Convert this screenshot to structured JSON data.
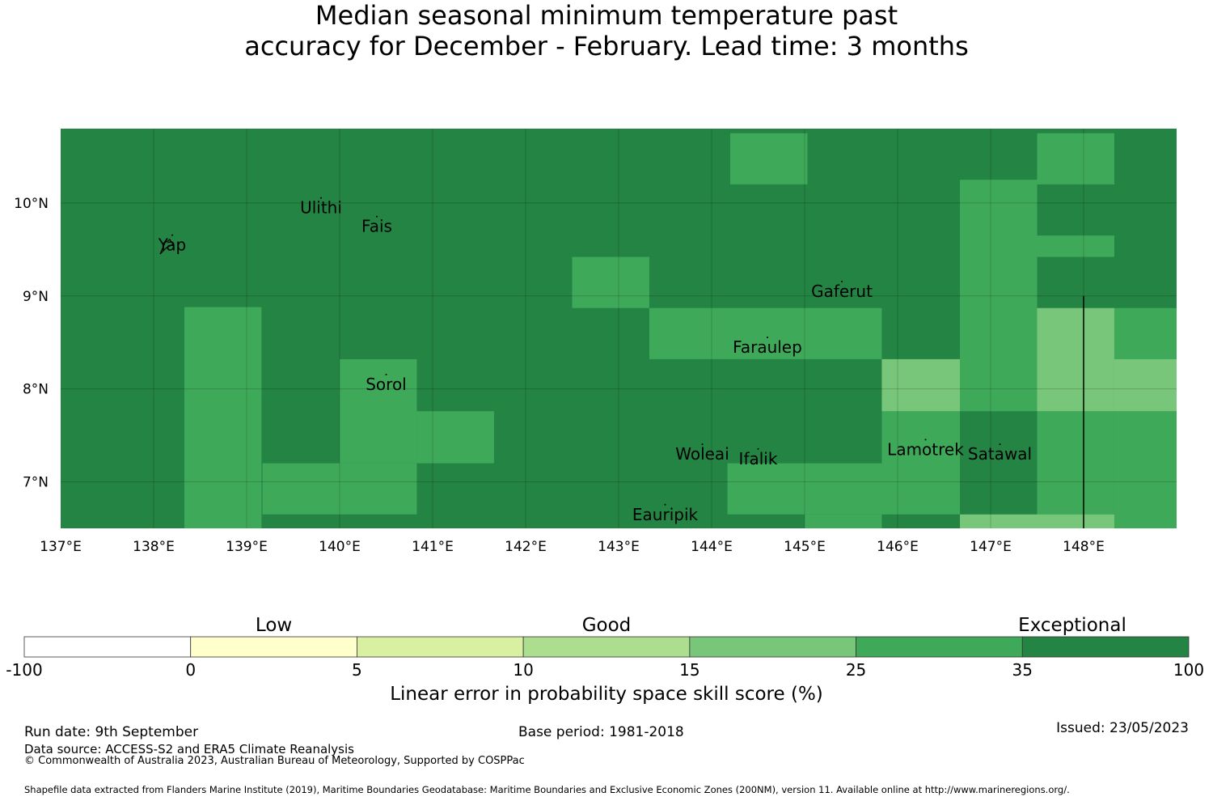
{
  "title": {
    "line1": "Median seasonal minimum temperature past",
    "line2": "accuracy for December - February. Lead time: 3 months"
  },
  "map": {
    "lon_range": [
      137,
      149
    ],
    "lat_range": [
      6.5,
      10.8
    ],
    "lon_ticks": [
      "137°E",
      "138°E",
      "139°E",
      "140°E",
      "141°E",
      "142°E",
      "143°E",
      "144°E",
      "145°E",
      "146°E",
      "147°E",
      "148°E"
    ],
    "lat_ticks": [
      "10°N",
      "9°N",
      "8°N",
      "7°N"
    ],
    "color_scale": {
      "c25": "#3fa95a",
      "c35": "#238443",
      "c15": "#78c679"
    },
    "places": [
      {
        "name": "Ulithi",
        "lon": 139.8,
        "lat": 9.95
      },
      {
        "name": "Fais",
        "lon": 140.4,
        "lat": 9.75
      },
      {
        "name": "Yap",
        "lon": 138.2,
        "lat": 9.55
      },
      {
        "name": "Gaferut",
        "lon": 145.4,
        "lat": 9.05
      },
      {
        "name": "Faraulep",
        "lon": 144.6,
        "lat": 8.45
      },
      {
        "name": "Sorol",
        "lon": 140.5,
        "lat": 8.05
      },
      {
        "name": "Woleai",
        "lon": 143.9,
        "lat": 7.3
      },
      {
        "name": "Ifalik",
        "lon": 144.5,
        "lat": 7.25
      },
      {
        "name": "Lamotrek",
        "lon": 146.3,
        "lat": 7.35
      },
      {
        "name": "Satawal",
        "lon": 147.1,
        "lat": 7.3
      },
      {
        "name": "Eauripik",
        "lon": 143.5,
        "lat": 6.65
      }
    ],
    "cells": [
      {
        "lon": 144.2,
        "lat": 10.2,
        "w": 0.83,
        "h": 0.55,
        "c": "c25"
      },
      {
        "lon": 147.5,
        "lat": 10.2,
        "w": 0.83,
        "h": 0.55,
        "c": "c25"
      },
      {
        "lon": 146.67,
        "lat": 9.42,
        "w": 0.83,
        "h": 0.83,
        "c": "c25"
      },
      {
        "lon": 147.5,
        "lat": 9.42,
        "w": 0.83,
        "h": 0.23,
        "c": "c25"
      },
      {
        "lon": 142.5,
        "lat": 8.87,
        "w": 0.83,
        "h": 0.55,
        "c": "c25"
      },
      {
        "lon": 146.67,
        "lat": 7.76,
        "w": 0.83,
        "h": 1.66,
        "c": "c25"
      },
      {
        "lon": 138.33,
        "lat": 6.5,
        "w": 0.83,
        "h": 2.38,
        "c": "c25"
      },
      {
        "lon": 143.33,
        "lat": 8.32,
        "w": 2.5,
        "h": 0.55,
        "c": "c25"
      },
      {
        "lon": 140.0,
        "lat": 7.2,
        "w": 0.83,
        "h": 1.12,
        "c": "c25"
      },
      {
        "lon": 140.83,
        "lat": 7.2,
        "w": 0.83,
        "h": 0.56,
        "c": "c25"
      },
      {
        "lon": 139.17,
        "lat": 6.65,
        "w": 1.66,
        "h": 0.55,
        "c": "c25"
      },
      {
        "lon": 144.17,
        "lat": 6.65,
        "w": 1.66,
        "h": 0.55,
        "c": "c25"
      },
      {
        "lon": 145.83,
        "lat": 6.65,
        "w": 0.84,
        "h": 1.11,
        "c": "c25"
      },
      {
        "lon": 145.0,
        "lat": 6.5,
        "w": 0.83,
        "h": 0.15,
        "c": "c25"
      },
      {
        "lon": 147.5,
        "lat": 6.65,
        "w": 0.83,
        "h": 1.11,
        "c": "c25"
      },
      {
        "lon": 148.33,
        "lat": 6.5,
        "w": 0.67,
        "h": 1.26,
        "c": "c25"
      },
      {
        "lon": 148.33,
        "lat": 8.32,
        "w": 0.67,
        "h": 0.55,
        "c": "c25"
      },
      {
        "lon": 145.83,
        "lat": 7.76,
        "w": 0.84,
        "h": 0.56,
        "c": "c15"
      },
      {
        "lon": 147.5,
        "lat": 7.76,
        "w": 0.83,
        "h": 1.11,
        "c": "c15"
      },
      {
        "lon": 148.33,
        "lat": 7.76,
        "w": 0.67,
        "h": 0.56,
        "c": "c15"
      },
      {
        "lon": 146.67,
        "lat": 6.5,
        "w": 1.66,
        "h": 0.15,
        "c": "c15"
      }
    ]
  },
  "colorbar": {
    "categories": [
      "Low",
      "Good",
      "Exceptional"
    ],
    "ticks": [
      "-100",
      "0",
      "5",
      "10",
      "15",
      "25",
      "35",
      "100"
    ],
    "colors": [
      "#ffffff",
      "#ffffcc",
      "#d9f0a3",
      "#addd8e",
      "#78c679",
      "#3fa95a",
      "#238443"
    ],
    "label": "Linear error in probability space skill score (%)"
  },
  "footer": {
    "run_date": "Run date: 9th September",
    "base_period": "Base period: 1981-2018",
    "issued": "Issued: 23/05/2023",
    "data_source": "Data source: ACCESS-S2 and ERA5 Climate Reanalysis",
    "copyright": "© Commonwealth of Australia 2023, Australian Bureau of Meteorology, Supported by COSPPac",
    "shapefile": "Shapefile data extracted from Flanders Marine Institute (2019), Maritime Boundaries Geodatabase: Maritime Boundaries and Exclusive Economic Zones (200NM), version 11. Available online at http://www.marineregions.org/."
  }
}
